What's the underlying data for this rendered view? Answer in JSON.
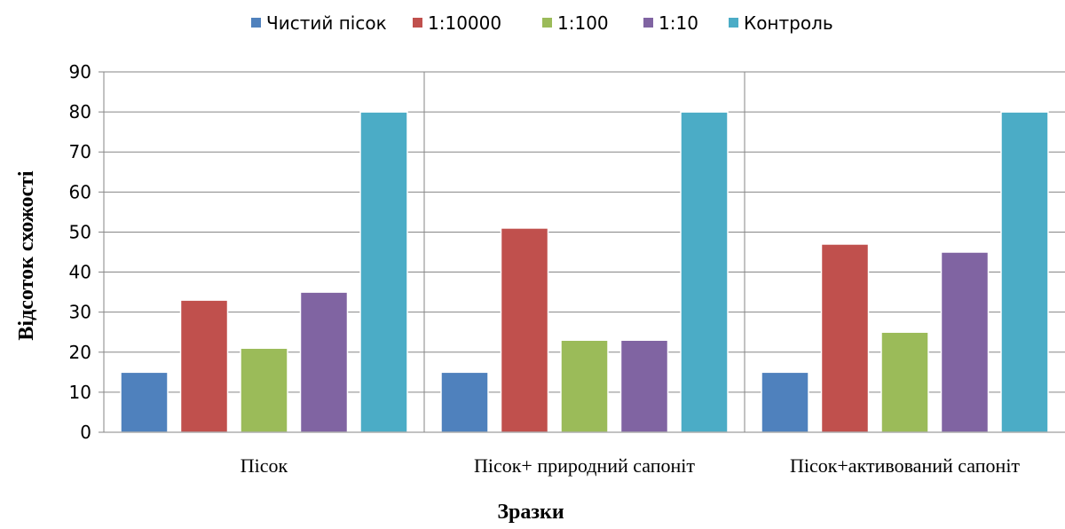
{
  "chart_data": {
    "type": "bar",
    "categories": [
      "Пісок",
      "Пісок+ природний сапоніт",
      "Пісок+активований сапоніт"
    ],
    "series": [
      {
        "name": "Чистий пісок",
        "values": [
          15,
          15,
          15
        ],
        "color": "#4f81bd"
      },
      {
        "name": "1:10000",
        "values": [
          33,
          51,
          47
        ],
        "color": "#c0504d"
      },
      {
        "name": "1:100",
        "values": [
          21,
          23,
          25
        ],
        "color": "#9bbb59"
      },
      {
        "name": "1:10",
        "values": [
          35,
          23,
          45
        ],
        "color": "#8064a2"
      },
      {
        "name": "Контроль",
        "values": [
          80,
          80,
          80
        ],
        "color": "#4bacc6"
      }
    ],
    "title": "",
    "xlabel": "Зразки",
    "ylabel": "Відсоток схожості",
    "ylim": [
      0,
      90
    ],
    "yticks": [
      0,
      10,
      20,
      30,
      40,
      50,
      60,
      70,
      80,
      90
    ],
    "grid": true,
    "legend_position": "top"
  }
}
